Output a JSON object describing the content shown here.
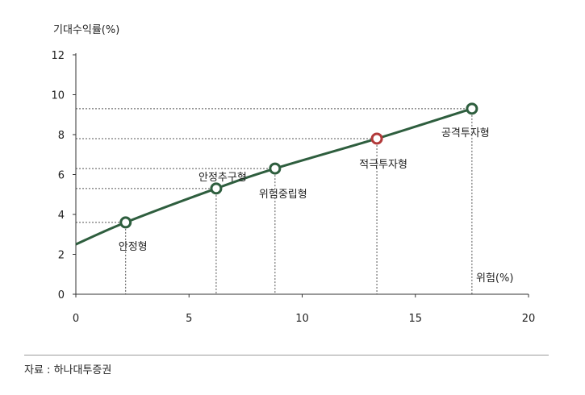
{
  "chart_data": {
    "type": "line",
    "ylabel": "기대수익률(%)",
    "xlabel": "위험(%)",
    "xlim": [
      0,
      20
    ],
    "ylim": [
      0,
      12
    ],
    "x_ticks": [
      0,
      5,
      10,
      15,
      20
    ],
    "y_ticks": [
      0,
      2,
      4,
      6,
      8,
      10,
      12
    ],
    "curve": {
      "x": [
        0,
        2.2,
        6.2,
        8.8,
        13.3,
        17.5
      ],
      "y": [
        2.5,
        3.6,
        5.3,
        6.3,
        7.8,
        9.3
      ]
    },
    "points": [
      {
        "label": "안정형",
        "x": 2.2,
        "y": 3.6,
        "highlight": false
      },
      {
        "label": "안정추구형",
        "x": 6.2,
        "y": 5.3,
        "highlight": false
      },
      {
        "label": "위험중립형",
        "x": 8.8,
        "y": 6.3,
        "highlight": false
      },
      {
        "label": "적극투자형",
        "x": 13.3,
        "y": 7.8,
        "highlight": true
      },
      {
        "label": "공격투자형",
        "x": 17.5,
        "y": 9.3,
        "highlight": false
      }
    ],
    "colors": {
      "line": "#2e5e3e",
      "highlight": "#b23a3a",
      "guide": "#555555"
    }
  },
  "source": "자료 : 하나대투증권"
}
